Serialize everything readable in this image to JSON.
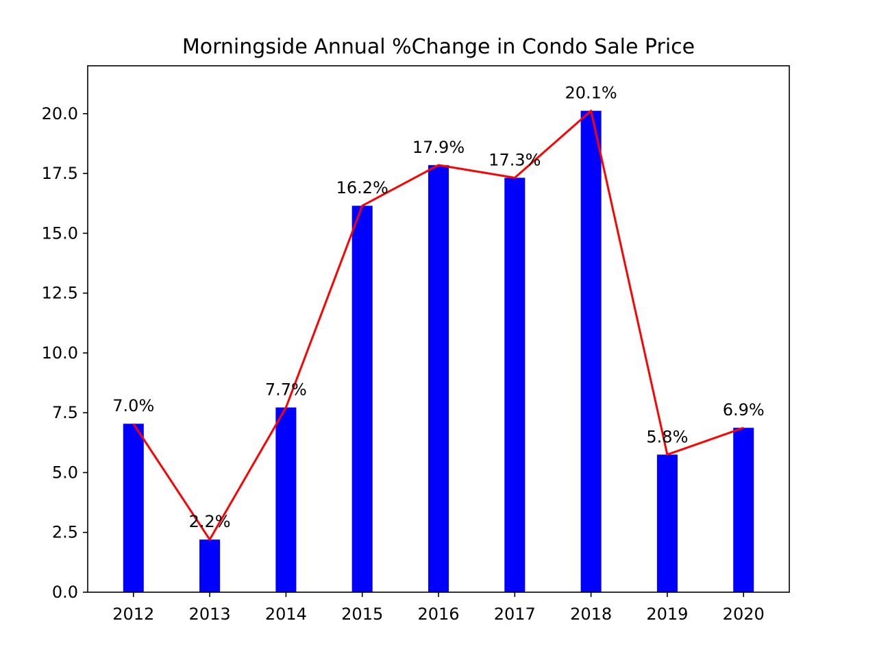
{
  "chart_data": {
    "type": "bar",
    "title": "Morningside Annual %Change in Condo Sale Price",
    "xlabel": "",
    "ylabel": "",
    "categories": [
      "2012",
      "2013",
      "2014",
      "2015",
      "2016",
      "2017",
      "2018",
      "2019",
      "2020"
    ],
    "values": [
      7.04,
      2.2,
      7.72,
      16.15,
      17.85,
      17.32,
      20.12,
      5.75,
      6.87
    ],
    "data_labels": [
      "7.0%",
      "2.2%",
      "7.7%",
      "16.2%",
      "17.9%",
      "17.3%",
      "20.1%",
      "5.8%",
      "6.9%"
    ],
    "overlay_line": {
      "type": "line",
      "values": [
        7.04,
        2.2,
        7.72,
        16.15,
        17.85,
        17.32,
        20.12,
        5.75,
        6.87
      ]
    },
    "ylim": [
      0,
      22
    ],
    "yticks": [
      0.0,
      2.5,
      5.0,
      7.5,
      10.0,
      12.5,
      15.0,
      17.5,
      20.0
    ],
    "ytick_labels": [
      "0.0",
      "2.5",
      "5.0",
      "7.5",
      "10.0",
      "12.5",
      "15.0",
      "17.5",
      "20.0"
    ],
    "grid": false,
    "legend": "none",
    "colors": {
      "bar": "#0000ff",
      "line": "#ff0000",
      "axis": "#000000"
    }
  }
}
